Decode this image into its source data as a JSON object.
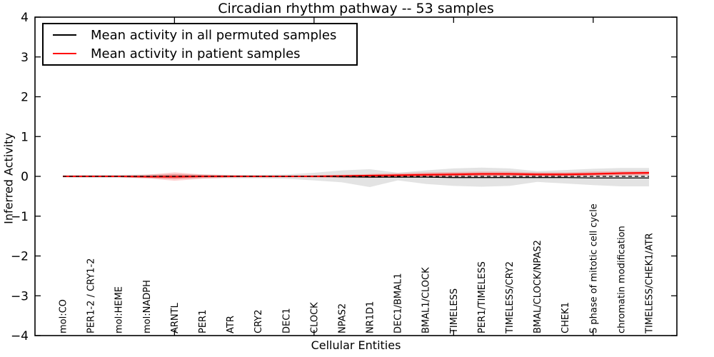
{
  "colors": {
    "background": "#ffffff",
    "frame": "#000000",
    "permuted_line": "#000000",
    "patient_line": "#ff0000",
    "permuted_band": "#808080",
    "patient_band": "#ff0000"
  },
  "chart_data": {
    "type": "line",
    "title": "Circadian rhythm pathway -- 53 samples",
    "xlabel": "Cellular Entities",
    "ylabel": "Inferred Activity",
    "ylim": [
      -4,
      4
    ],
    "yticks": [
      4,
      3,
      2,
      1,
      0,
      -1,
      -2,
      -3,
      -4
    ],
    "xtick_indices": [
      4,
      9,
      14,
      19
    ],
    "grid": false,
    "legend_position": "upper left",
    "zero_line": {
      "y": 0,
      "style": "dashed",
      "color": "#000000"
    },
    "categories": [
      "mol:CO",
      "PER1-2 / CRY1-2",
      "mol:HEME",
      "mol:NADPH",
      "ARNTL",
      "PER1",
      "ATR",
      "CRY2",
      "DEC1",
      "CLOCK",
      "NPAS2",
      "NR1D1",
      "DEC1/BMAL1",
      "BMAL1/CLOCK",
      "TIMELESS",
      "PER1/TIMELESS",
      "TIMELESS/CRY2",
      "BMAL/CLOCK/NPAS2",
      "CHEK1",
      "S phase of mitotic cell cycle",
      "chromatin modification",
      "TIMELESS/CHEK1/ATR"
    ],
    "series": [
      {
        "name": "Mean activity in all permuted samples",
        "color": "#000000",
        "values": [
          0,
          0,
          0,
          0,
          0,
          0,
          0,
          0,
          0,
          0,
          -0.01,
          -0.02,
          -0.02,
          -0.02,
          -0.03,
          -0.03,
          -0.03,
          -0.03,
          -0.03,
          -0.04,
          -0.04,
          -0.04
        ]
      },
      {
        "name": "Mean activity in patient samples",
        "color": "#ff0000",
        "values": [
          0,
          0,
          0,
          -0.01,
          -0.01,
          0,
          0,
          0,
          0,
          0,
          0.01,
          0.02,
          0.03,
          0.04,
          0.05,
          0.06,
          0.06,
          0.05,
          0.05,
          0.06,
          0.08,
          0.09
        ]
      }
    ],
    "bands": [
      {
        "name": "permuted-range",
        "color": "#808080",
        "opacity": 0.22,
        "upper": [
          0.03,
          0.04,
          0.04,
          0.05,
          0.06,
          0.05,
          0.04,
          0.04,
          0.05,
          0.09,
          0.15,
          0.18,
          0.09,
          0.15,
          0.2,
          0.22,
          0.2,
          0.13,
          0.16,
          0.19,
          0.21,
          0.21
        ],
        "lower": [
          -0.03,
          -0.04,
          -0.04,
          -0.05,
          -0.06,
          -0.05,
          -0.05,
          -0.05,
          -0.06,
          -0.1,
          -0.15,
          -0.27,
          -0.1,
          -0.19,
          -0.24,
          -0.26,
          -0.24,
          -0.14,
          -0.18,
          -0.22,
          -0.25,
          -0.25
        ]
      },
      {
        "name": "patient-range-outer",
        "color": "#ff0000",
        "opacity": 0.18,
        "upper": [
          0.02,
          0.02,
          0.02,
          0.04,
          0.1,
          0.05,
          0.03,
          0.02,
          0.02,
          0.03,
          0.04,
          0.06,
          0.08,
          0.1,
          0.11,
          0.12,
          0.12,
          0.1,
          0.1,
          0.12,
          0.13,
          0.14
        ],
        "lower": [
          -0.02,
          -0.02,
          -0.02,
          -0.05,
          -0.11,
          -0.06,
          -0.03,
          -0.03,
          -0.03,
          -0.03,
          -0.04,
          -0.04,
          -0.03,
          -0.02,
          -0.01,
          0,
          0,
          0,
          0,
          0.01,
          0.02,
          0.03
        ]
      },
      {
        "name": "patient-range-inner",
        "color": "#ff0000",
        "opacity": 0.25,
        "upper": [
          0.01,
          0.01,
          0.01,
          0.02,
          0.05,
          0.03,
          0.02,
          0.01,
          0.01,
          0.02,
          0.02,
          0.04,
          0.05,
          0.07,
          0.08,
          0.09,
          0.09,
          0.08,
          0.08,
          0.09,
          0.1,
          0.11
        ],
        "lower": [
          -0.01,
          -0.01,
          -0.01,
          -0.03,
          -0.06,
          -0.03,
          -0.02,
          -0.01,
          -0.01,
          -0.02,
          -0.02,
          -0.02,
          -0.01,
          0,
          0.01,
          0.02,
          0.02,
          0.01,
          0.01,
          0.03,
          0.04,
          0.05
        ]
      }
    ]
  }
}
